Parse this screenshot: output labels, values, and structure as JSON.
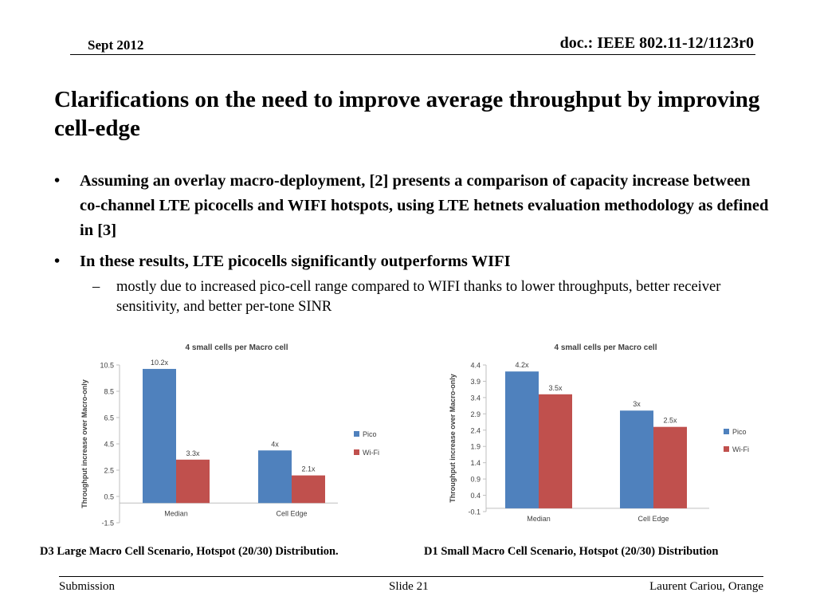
{
  "header": {
    "date": "Sept 2012",
    "doc": "doc.: IEEE 802.11-12/1123r0"
  },
  "title": "Clarifications on the need to improve average throughput by improving cell-edge",
  "bullets": [
    {
      "mark": "•",
      "text": "Assuming an overlay macro-deployment, [2] presents a comparison of capacity increase between co-channel LTE picocells and WIFI hotspots, using LTE hetnets evaluation methodology as defined in [3]"
    },
    {
      "mark": "•",
      "text": "In these results, LTE picocells significantly outperforms WIFI"
    }
  ],
  "subbullets": [
    {
      "mark": "–",
      "text": "mostly due to increased pico-cell range compared to WIFI thanks to lower throughputs, better receiver sensitivity, and better per-tone SINR"
    }
  ],
  "captions": [
    "D3 Large Macro Cell Scenario, Hotspot (20/30) Distribution.",
    "D1 Small Macro Cell Scenario, Hotspot (20/30) Distribution"
  ],
  "footer": {
    "left": "Submission",
    "center": "Slide 21",
    "right": "Laurent Cariou, Orange"
  },
  "colors": {
    "pico": "#4f81bd",
    "wifi": "#c0504d",
    "axis": "#bfbfbf"
  },
  "chart_data": [
    {
      "type": "bar",
      "title": "4 small cells per Macro cell",
      "ylabel": "Throughput increase over Macro-only",
      "categories": [
        "Median",
        "Cell Edge"
      ],
      "series": [
        {
          "name": "Pico",
          "values": [
            10.2,
            4
          ],
          "labels": [
            "10.2x",
            "4x"
          ]
        },
        {
          "name": "Wi-Fi",
          "values": [
            3.3,
            2.1
          ],
          "labels": [
            "3.3x",
            "2.1x"
          ]
        }
      ],
      "yticks": [
        "10.5",
        "8.5",
        "6.5",
        "4.5",
        "2.5",
        "0.5",
        "-1.5"
      ],
      "ylim": [
        -1.5,
        10.5
      ],
      "legend": "right"
    },
    {
      "type": "bar",
      "title": "4 small cells per Macro cell",
      "ylabel": "Throughput increase over Macro-only",
      "categories": [
        "Median",
        "Cell Edge"
      ],
      "series": [
        {
          "name": "Pico",
          "values": [
            4.2,
            3
          ],
          "labels": [
            "4.2x",
            "3x"
          ]
        },
        {
          "name": "Wi-Fi",
          "values": [
            3.5,
            2.5
          ],
          "labels": [
            "3.5x",
            "2.5x"
          ]
        }
      ],
      "yticks": [
        "4.4",
        "3.9",
        "3.4",
        "2.9",
        "2.4",
        "1.9",
        "1.4",
        "0.9",
        "0.4",
        "-0.1"
      ],
      "ylim": [
        -0.1,
        4.4
      ],
      "legend": "right"
    }
  ]
}
